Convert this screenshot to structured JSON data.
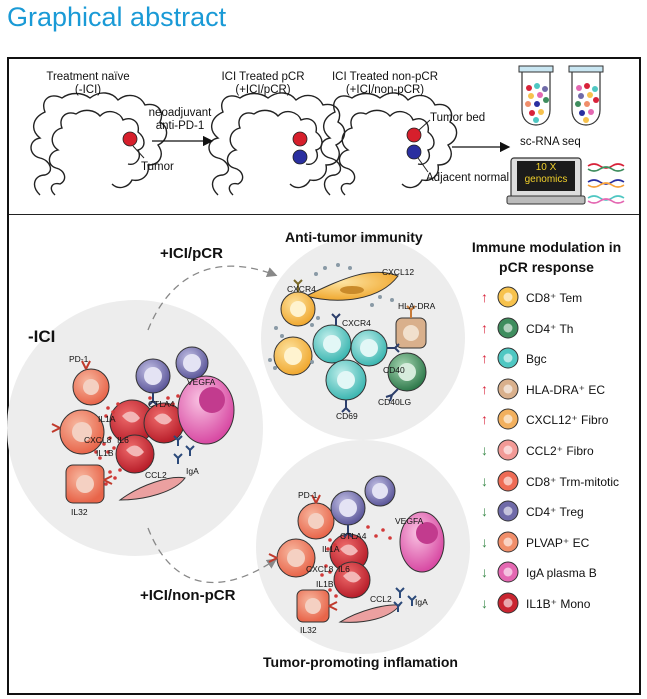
{
  "title": "Graphical abstract",
  "top": {
    "naive_label_1": "Treatment naïve",
    "naive_label_2": "(-ICI)",
    "pcr_label_1": "ICI Treated pCR",
    "pcr_label_2": "(+ICI/pCR)",
    "nonpcr_label_1": "ICI Treated non-pCR",
    "nonpcr_label_2": "(+ICI/non-pCR)",
    "treatment_1": "neoadjuvant",
    "treatment_2": "anti-PD-1",
    "tumor": "Tumor",
    "tumor_bed": "Tumor bed",
    "adjacent_normal": "Adjacent normal",
    "scrna": "sc-RNA seq",
    "genomics_1": "10 X",
    "genomics_2": "genomics"
  },
  "bottom": {
    "minus_ici": "-ICI",
    "plus_pcr": "+ICI/pCR",
    "plus_nonpcr": "+ICI/non-pCR",
    "anti_tumor": "Anti-tumor immunity",
    "tumor_promoting": "Tumor-promoting inflamation",
    "legend_title_1": "Immune modulation in",
    "legend_title_2": "pCR response",
    "markers": {
      "pd1": "PD-1",
      "ctla4": "CTLA4",
      "vegfa": "VEGFA",
      "il1a": "IL1A",
      "cxcl8": "CXCL8",
      "il6": "IL6",
      "il1b": "IL1B",
      "il32": "IL32",
      "ccl2": "CCL2",
      "iga": "IgA",
      "cxcr4": "CXCR4",
      "cxcl12": "CXCL12",
      "hladra": "HLA-DRA",
      "cd40": "CD40",
      "cd69": "CD69",
      "cd40lg": "CD40LG"
    }
  },
  "legend": [
    {
      "dir": "↑",
      "color": "#d8233a",
      "cell": "#f7c24d",
      "label": "CD8⁺ Tem"
    },
    {
      "dir": "↑",
      "color": "#d8233a",
      "cell": "#3f8d5e",
      "label": "CD4⁺ Th"
    },
    {
      "dir": "↑",
      "color": "#d8233a",
      "cell": "#4fc7c2",
      "label": "Bgc"
    },
    {
      "dir": "↑",
      "color": "#d8233a",
      "cell": "#d9b08c",
      "label": "HLA-DRA⁺ EC"
    },
    {
      "dir": "↑",
      "color": "#d8233a",
      "cell": "#f2b05e",
      "label": "CXCL12⁺ Fibro"
    },
    {
      "dir": "↓",
      "color": "#3a8a4a",
      "cell": "#f29a96",
      "label": "CCL2⁺ Fibro"
    },
    {
      "dir": "↓",
      "color": "#3a8a4a",
      "cell": "#ee6b55",
      "label": "CD8⁺ Trm-mitotic"
    },
    {
      "dir": "↓",
      "color": "#3a8a4a",
      "cell": "#6f6aa8",
      "label": "CD4⁺ Treg"
    },
    {
      "dir": "↓",
      "color": "#3a8a4a",
      "cell": "#f08e6a",
      "label": "PLVAP⁺ EC"
    },
    {
      "dir": "↓",
      "color": "#3a8a4a",
      "cell": "#e468b2",
      "label": "IgA plasma B"
    },
    {
      "dir": "↓",
      "color": "#3a8a4a",
      "cell": "#c92530",
      "label": "IL1B⁺ Mono"
    }
  ]
}
